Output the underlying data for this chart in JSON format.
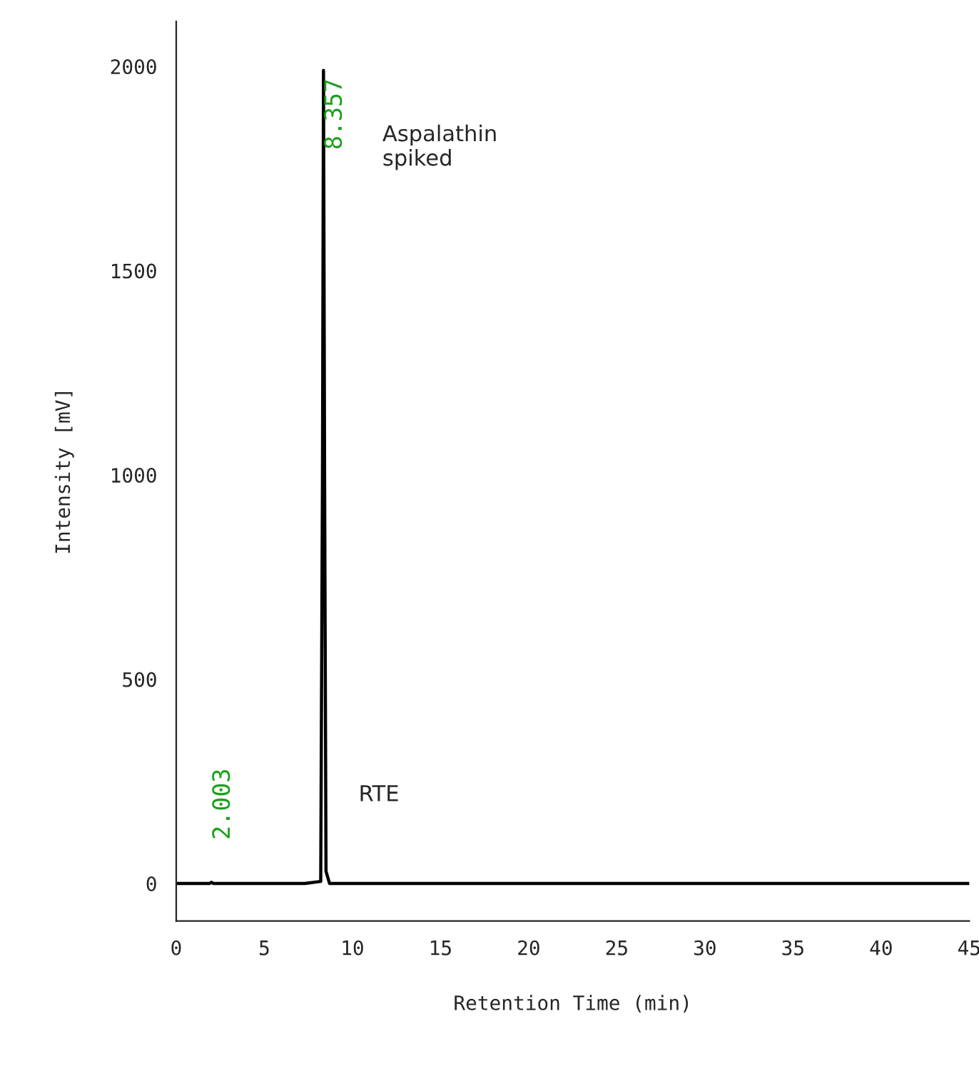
{
  "chart_data": {
    "type": "line",
    "xlabel": "Retention Time (min)",
    "ylabel": "Intensity [mV]",
    "x": [
      0,
      1.9,
      2.0,
      2.1,
      7.3,
      8.2,
      8.3,
      8.357,
      8.42,
      8.5,
      8.7,
      14.5,
      45
    ],
    "series": [
      {
        "color": "#000000",
        "values": [
          0,
          0,
          3,
          0,
          0,
          5,
          1000,
          1990,
          1000,
          30,
          0,
          0,
          0
        ]
      }
    ],
    "xlim": [
      0,
      45
    ],
    "ylim": [
      -92,
      2110
    ],
    "xticks": [
      0,
      5,
      10,
      15,
      20,
      25,
      30,
      35,
      40,
      45
    ],
    "yticks": [
      0,
      500,
      1000,
      1500,
      2000
    ],
    "annotations": [
      {
        "text": "2.003",
        "x": 2.003,
        "y": 0
      },
      {
        "text": "8.357",
        "x": 8.357,
        "y": 1990
      },
      "Aspalathin\nspiked",
      "RTE"
    ],
    "grid": false,
    "legend": false,
    "marker": "none",
    "line_style": "solid"
  }
}
